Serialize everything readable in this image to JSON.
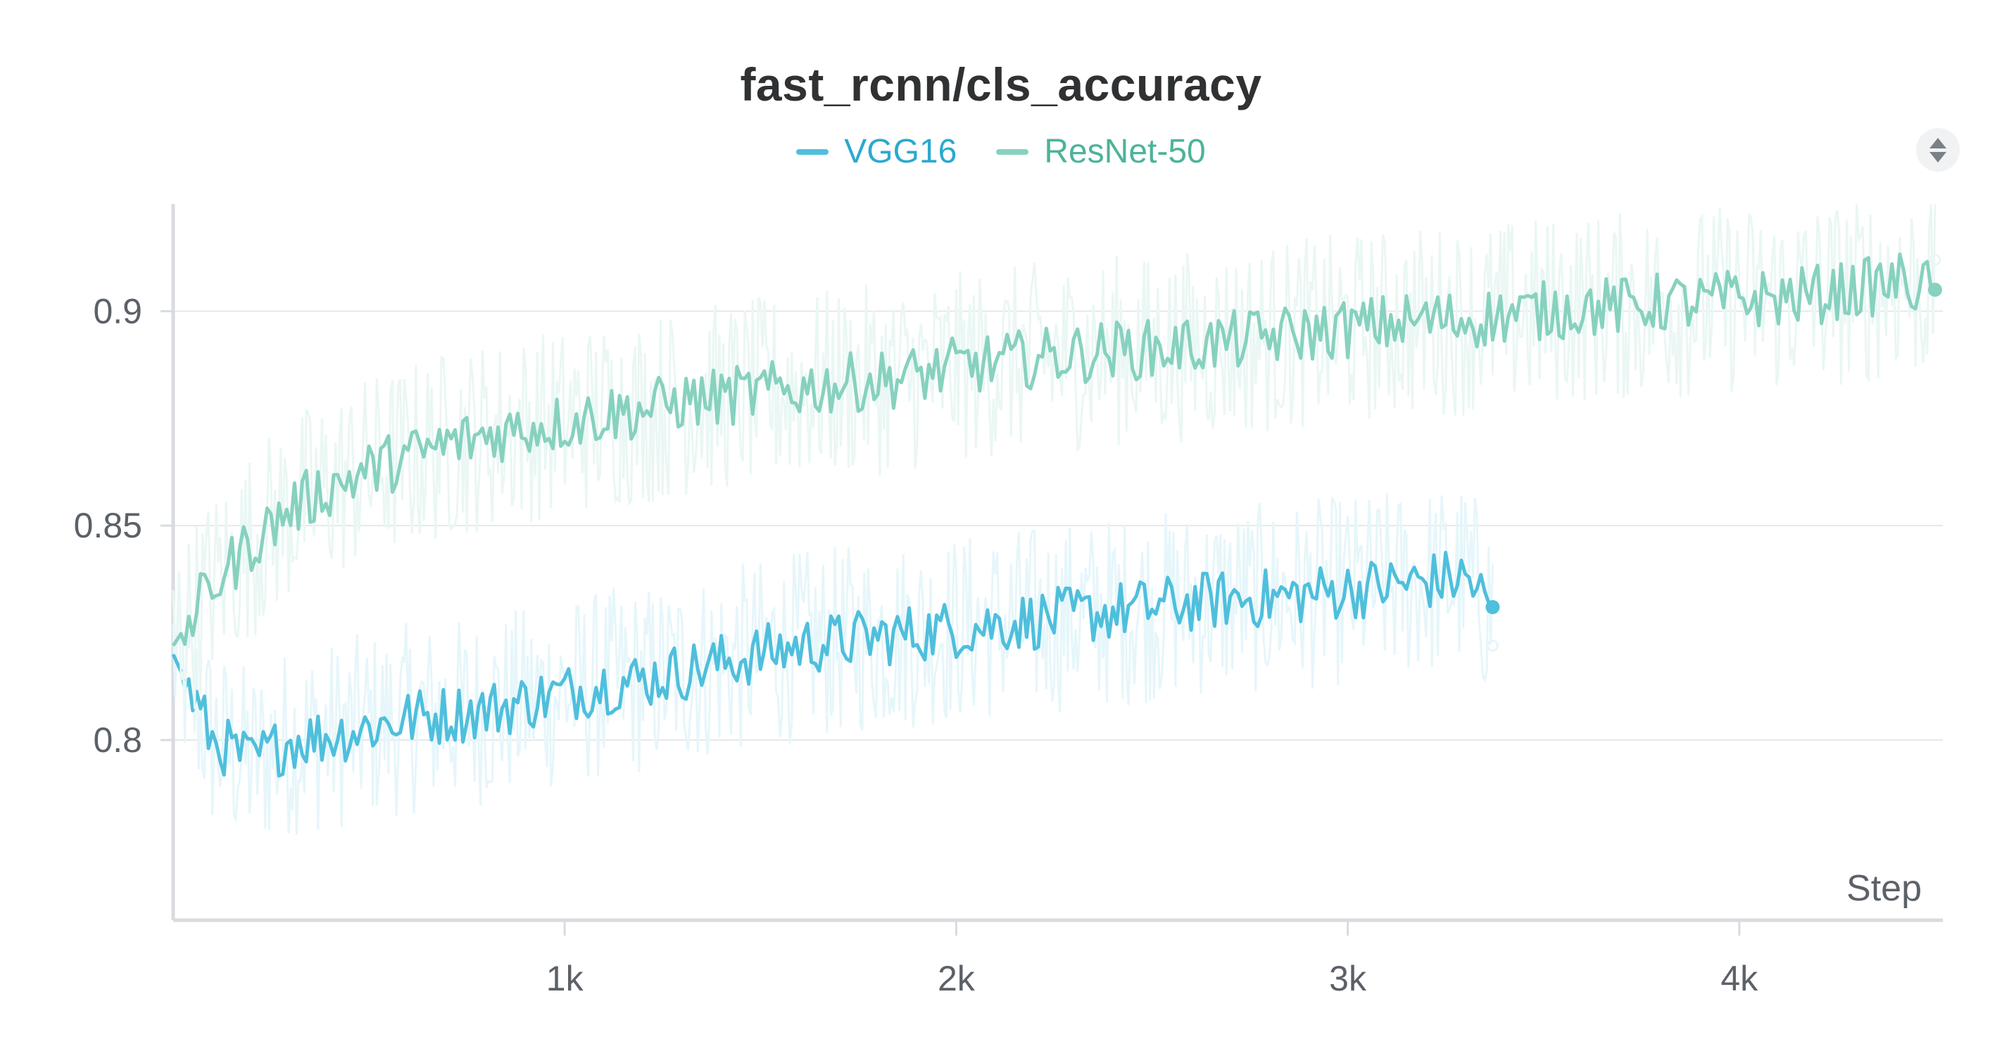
{
  "chart_data": {
    "type": "line",
    "title": "fast_rcnn/cls_accuracy",
    "xlabel": "Step",
    "ylabel": "",
    "xlim": [
      0,
      4520
    ],
    "ylim": [
      0.758,
      0.925
    ],
    "x_ticks": [
      1000,
      2000,
      3000,
      4000
    ],
    "x_tick_labels": [
      "1k",
      "2k",
      "3k",
      "4k"
    ],
    "y_ticks": [
      0.8,
      0.85,
      0.9
    ],
    "y_tick_labels": [
      "0.8",
      "0.85",
      "0.9"
    ],
    "grid": "horizontal",
    "legend": "top-center",
    "series": [
      {
        "name": "VGG16",
        "color": "#4fbfdc",
        "raw_color": "#e6f6fa",
        "step_end": 3370,
        "x": [
          0,
          100,
          200,
          300,
          400,
          500,
          600,
          700,
          800,
          900,
          1000,
          1100,
          1200,
          1300,
          1400,
          1500,
          1600,
          1700,
          1800,
          1900,
          2000,
          2100,
          2200,
          2300,
          2400,
          2500,
          2600,
          2700,
          2800,
          2900,
          3000,
          3100,
          3200,
          3300,
          3370
        ],
        "smoothed": [
          0.82,
          0.8,
          0.795,
          0.8,
          0.801,
          0.803,
          0.805,
          0.806,
          0.807,
          0.809,
          0.811,
          0.813,
          0.814,
          0.816,
          0.818,
          0.82,
          0.822,
          0.823,
          0.824,
          0.825,
          0.826,
          0.827,
          0.828,
          0.829,
          0.83,
          0.831,
          0.832,
          0.833,
          0.833,
          0.834,
          0.835,
          0.836,
          0.837,
          0.838,
          0.831
        ],
        "raw_end": 0.822
      },
      {
        "name": "ResNet-50",
        "color": "#87d1bf",
        "raw_color": "#eaf7f4",
        "step_end": 4500,
        "x": [
          0,
          100,
          200,
          300,
          400,
          500,
          600,
          700,
          800,
          900,
          1000,
          1100,
          1200,
          1300,
          1400,
          1500,
          1600,
          1700,
          1800,
          1900,
          2000,
          2100,
          2200,
          2300,
          2400,
          2500,
          2600,
          2700,
          2800,
          2900,
          3000,
          3100,
          3200,
          3300,
          3400,
          3500,
          3600,
          3700,
          3800,
          3900,
          4000,
          4100,
          4200,
          4300,
          4400,
          4500
        ],
        "smoothed": [
          0.822,
          0.836,
          0.846,
          0.854,
          0.859,
          0.863,
          0.866,
          0.869,
          0.871,
          0.873,
          0.874,
          0.876,
          0.877,
          0.879,
          0.88,
          0.881,
          0.882,
          0.883,
          0.884,
          0.885,
          0.887,
          0.888,
          0.889,
          0.89,
          0.891,
          0.891,
          0.892,
          0.893,
          0.894,
          0.895,
          0.896,
          0.897,
          0.898,
          0.898,
          0.899,
          0.9,
          0.901,
          0.901,
          0.902,
          0.902,
          0.903,
          0.903,
          0.904,
          0.905,
          0.907,
          0.905
        ],
        "raw_end": 0.912
      }
    ]
  },
  "controls": {
    "sort_icon": "sort-updown-icon"
  }
}
